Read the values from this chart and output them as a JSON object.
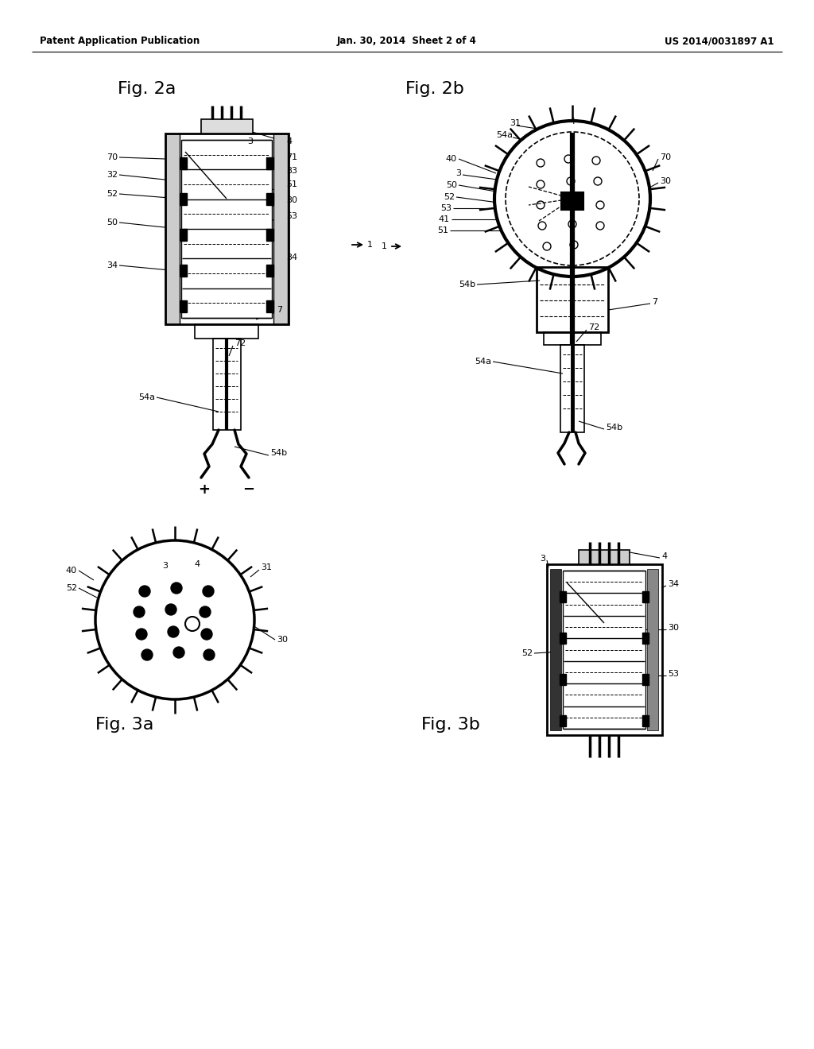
{
  "bg_color": "#ffffff",
  "header_left": "Patent Application Publication",
  "header_center": "Jan. 30, 2014  Sheet 2 of 4",
  "header_right": "US 2014/0031897 A1",
  "fig2a_label": "Fig. 2a",
  "fig2b_label": "Fig. 2b",
  "fig3a_label": "Fig. 3a",
  "fig3b_label": "Fig. 3b"
}
